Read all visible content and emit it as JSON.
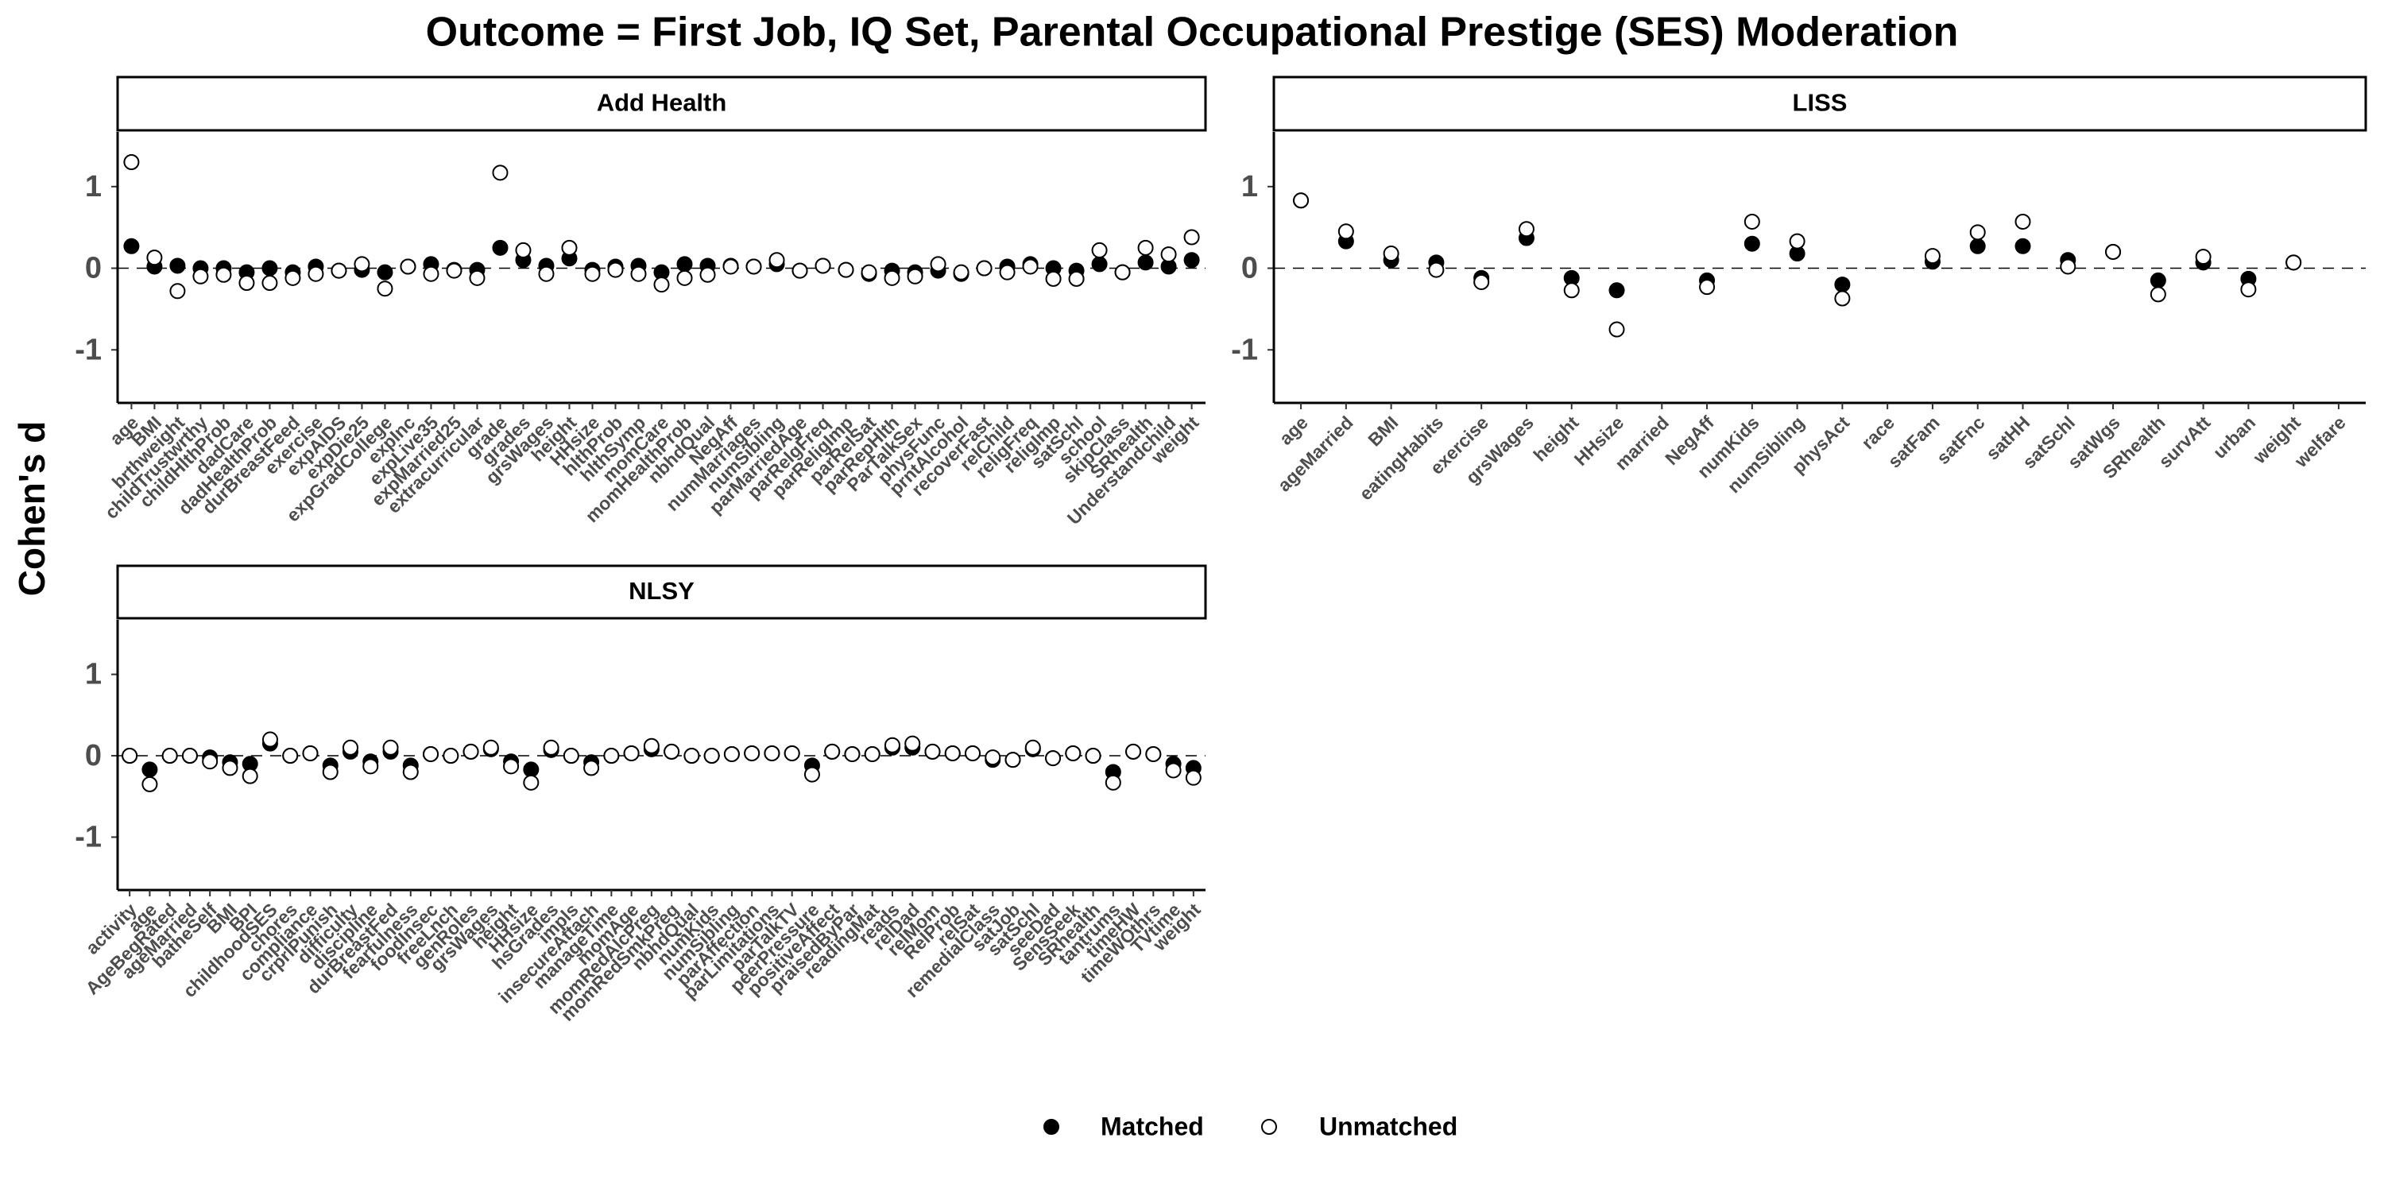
{
  "title": "Outcome = First Job, IQ Set, Parental Occupational Prestige (SES) Moderation",
  "y_label": "Cohen's d",
  "chart_data": [
    {
      "type": "dot",
      "title": "Add Health",
      "categories": [
        "age",
        "BMI",
        "brthweight",
        "childTrustwrthy",
        "childHlthProb",
        "dadCare",
        "dadHealthProb",
        "durBreastFeed",
        "exercise",
        "expAIDS",
        "expDie25",
        "expGradCollege",
        "expInc",
        "expLive35",
        "expMarried25",
        "extracurricular",
        "grade",
        "grades",
        "grsWages",
        "height",
        "HHsize",
        "hlthProb",
        "hlthSymp",
        "momCare",
        "momHealthProb",
        "nbhdQual",
        "NegAff",
        "numMarriages",
        "numSibling",
        "parMarriedAge",
        "parRelgFreq",
        "parReligImp",
        "parRelSat",
        "parRepHlth",
        "ParTalkSex",
        "physFunc",
        "prntAlcohol",
        "recoverFast",
        "relChild",
        "religFreq",
        "religImp",
        "satSchl",
        "school",
        "skipClass",
        "SRhealth",
        "Understandchild",
        "weight"
      ],
      "series": [
        {
          "name": "Matched",
          "fill": "#000000",
          "values": [
            0.27,
            0.02,
            0.03,
            0,
            0,
            -0.05,
            0,
            -0.05,
            0.02,
            -0.03,
            -0.02,
            -0.05,
            0.02,
            0.05,
            -0.02,
            -0.02,
            0.25,
            0.1,
            0.03,
            0.12,
            -0.02,
            0.02,
            0.03,
            -0.05,
            0.05,
            0.03,
            0.03,
            0.02,
            0.05,
            -0.03,
            0.03,
            -0.02,
            -0.07,
            -0.03,
            -0.05,
            -0.03,
            -0.07,
            0,
            0.02,
            0.05,
            0,
            -0.03,
            0.05,
            -0.05,
            0.07,
            0.02,
            0.1
          ]
        },
        {
          "name": "Unmatched",
          "fill": "#ffffff",
          "values": [
            1.3,
            0.13,
            -0.28,
            -0.1,
            -0.08,
            -0.18,
            -0.18,
            -0.12,
            -0.07,
            -0.03,
            0.05,
            -0.25,
            0.02,
            -0.07,
            -0.03,
            -0.12,
            1.17,
            0.22,
            -0.07,
            0.25,
            -0.07,
            -0.02,
            -0.07,
            -0.2,
            -0.12,
            -0.08,
            0.02,
            0.02,
            0.1,
            -0.03,
            0.03,
            -0.02,
            -0.05,
            -0.12,
            -0.1,
            0.05,
            -0.05,
            0,
            -0.05,
            0.02,
            -0.13,
            -0.13,
            0.22,
            -0.05,
            0.25,
            0.17,
            0.38
          ]
        }
      ],
      "ylim": [
        -1.65,
        1.67
      ],
      "yticks": [
        -1,
        0,
        1
      ]
    },
    {
      "type": "dot",
      "title": "LISS",
      "categories": [
        "age",
        "ageMarried",
        "BMI",
        "eatingHabits",
        "exercise",
        "grsWages",
        "height",
        "HHsize",
        "married",
        "NegAff",
        "numKids",
        "numSibling",
        "physAct",
        "race",
        "satFam",
        "satFnc",
        "satHH",
        "satSchl",
        "satWgs",
        "SRhealth",
        "survAtt",
        "urban",
        "weight",
        "welfare"
      ],
      "series": [
        {
          "name": "Matched",
          "fill": "#000000",
          "values": [
            0.83,
            0.33,
            0.1,
            0.07,
            -0.12,
            0.37,
            -0.12,
            -0.27,
            null,
            -0.15,
            0.3,
            0.18,
            -0.2,
            null,
            0.08,
            0.27,
            0.27,
            0.1,
            0.2,
            -0.15,
            0.07,
            -0.13,
            0.07,
            null
          ]
        },
        {
          "name": "Unmatched",
          "fill": "#ffffff",
          "values": [
            0.83,
            0.45,
            0.18,
            -0.02,
            -0.17,
            0.48,
            -0.27,
            -0.75,
            null,
            -0.23,
            0.57,
            0.33,
            -0.37,
            null,
            0.15,
            0.44,
            0.57,
            0.02,
            0.2,
            -0.32,
            0.14,
            -0.26,
            0.07,
            null
          ]
        }
      ],
      "ylim": [
        -1.65,
        1.67
      ],
      "yticks": [
        -1,
        0,
        1
      ]
    },
    {
      "type": "dot",
      "title": "NLSY",
      "categories": [
        "activity",
        "age",
        "AgeBegRated",
        "ageMarried",
        "batheSelf",
        "BMI",
        "BPI",
        "childhoodSES",
        "chores",
        "compliance",
        "crprlPunish",
        "difficulty",
        "discipline",
        "durBreastFed",
        "fearfulness",
        "foodInsec",
        "freeLnch",
        "genRoles",
        "grsWages",
        "height",
        "HHsize",
        "hsGrades",
        "impls",
        "insecureAttach",
        "manageTime",
        "momAge",
        "momRedAlcPreg",
        "momRedSmkPreg",
        "nbhdQual",
        "numKids",
        "numSibling",
        "parAffection",
        "parLimitations",
        "parTalkTV",
        "peerPressure",
        "positiveAffect",
        "praisedByPar",
        "readingMat",
        "reads",
        "relDad",
        "relMom",
        "RelProb",
        "relSat",
        "remedialClass",
        "satJob",
        "satSchl",
        "seeDad",
        "SensSeek",
        "SRhealth",
        "tantrums",
        "timeHW",
        "timeWOthrs",
        "TVtime",
        "weight"
      ],
      "series": [
        {
          "name": "Matched",
          "fill": "#000000",
          "values": [
            0,
            -0.17,
            0,
            0,
            -0.02,
            -0.08,
            -0.1,
            0.15,
            0,
            0.03,
            -0.12,
            0.05,
            -0.07,
            0.05,
            -0.12,
            0.02,
            0,
            0.05,
            0.08,
            -0.07,
            -0.17,
            0.07,
            0,
            -0.08,
            0,
            0.03,
            0.08,
            0.05,
            0,
            0,
            0.02,
            0.03,
            0.03,
            0.03,
            -0.12,
            0.05,
            0.02,
            0.02,
            0.1,
            0.1,
            0.05,
            0.03,
            0.03,
            -0.05,
            -0.05,
            0.08,
            -0.03,
            0.03,
            0,
            -0.2,
            0.05,
            0.02,
            -0.1,
            -0.15
          ]
        },
        {
          "name": "Unmatched",
          "fill": "#ffffff",
          "values": [
            0,
            -0.35,
            0,
            0,
            -0.07,
            -0.15,
            -0.25,
            0.2,
            0,
            0.03,
            -0.2,
            0.1,
            -0.13,
            0.1,
            -0.2,
            0.02,
            0,
            0.05,
            0.1,
            -0.13,
            -0.33,
            0.1,
            0,
            -0.15,
            0,
            0.03,
            0.12,
            0.05,
            0,
            0,
            0.02,
            0.03,
            0.03,
            0.03,
            -0.23,
            0.05,
            0.02,
            0.02,
            0.13,
            0.15,
            0.05,
            0.03,
            0.03,
            -0.02,
            -0.05,
            0.1,
            -0.03,
            0.03,
            0,
            -0.33,
            0.05,
            0.02,
            -0.18,
            -0.27
          ]
        }
      ],
      "ylim": [
        -1.65,
        1.67
      ],
      "yticks": [
        -1,
        0,
        1
      ]
    }
  ]
}
